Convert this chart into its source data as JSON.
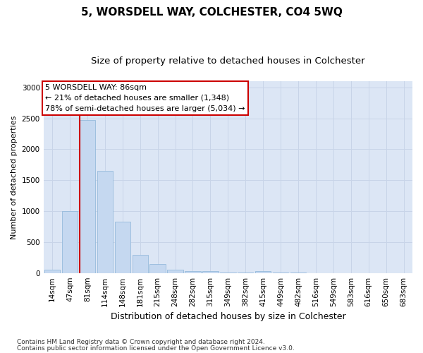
{
  "title": "5, WORSDELL WAY, COLCHESTER, CO4 5WQ",
  "subtitle": "Size of property relative to detached houses in Colchester",
  "xlabel": "Distribution of detached houses by size in Colchester",
  "ylabel": "Number of detached properties",
  "footnote1": "Contains HM Land Registry data © Crown copyright and database right 2024.",
  "footnote2": "Contains public sector information licensed under the Open Government Licence v3.0.",
  "categories": [
    "14sqm",
    "47sqm",
    "81sqm",
    "114sqm",
    "148sqm",
    "181sqm",
    "215sqm",
    "248sqm",
    "282sqm",
    "315sqm",
    "349sqm",
    "382sqm",
    "415sqm",
    "449sqm",
    "482sqm",
    "516sqm",
    "549sqm",
    "583sqm",
    "616sqm",
    "650sqm",
    "683sqm"
  ],
  "values": [
    50,
    1000,
    2470,
    1650,
    830,
    290,
    150,
    50,
    35,
    25,
    5,
    5,
    30,
    5,
    5,
    0,
    0,
    0,
    0,
    0,
    0
  ],
  "bar_color": "#c5d8f0",
  "bar_edge_color": "#8ab4d8",
  "highlight_bar_index": 2,
  "highlight_color": "#cc0000",
  "annotation_text": "5 WORSDELL WAY: 86sqm\n← 21% of detached houses are smaller (1,348)\n78% of semi-detached houses are larger (5,034) →",
  "annotation_box_color": "#ffffff",
  "annotation_box_edge_color": "#cc0000",
  "ylim": [
    0,
    3100
  ],
  "yticks": [
    0,
    500,
    1000,
    1500,
    2000,
    2500,
    3000
  ],
  "grid_color": "#c8d4e8",
  "bg_color": "#dce6f5",
  "title_fontsize": 11,
  "subtitle_fontsize": 9.5,
  "xlabel_fontsize": 9,
  "ylabel_fontsize": 8,
  "tick_fontsize": 7.5,
  "annotation_fontsize": 8,
  "footnote_fontsize": 6.5
}
